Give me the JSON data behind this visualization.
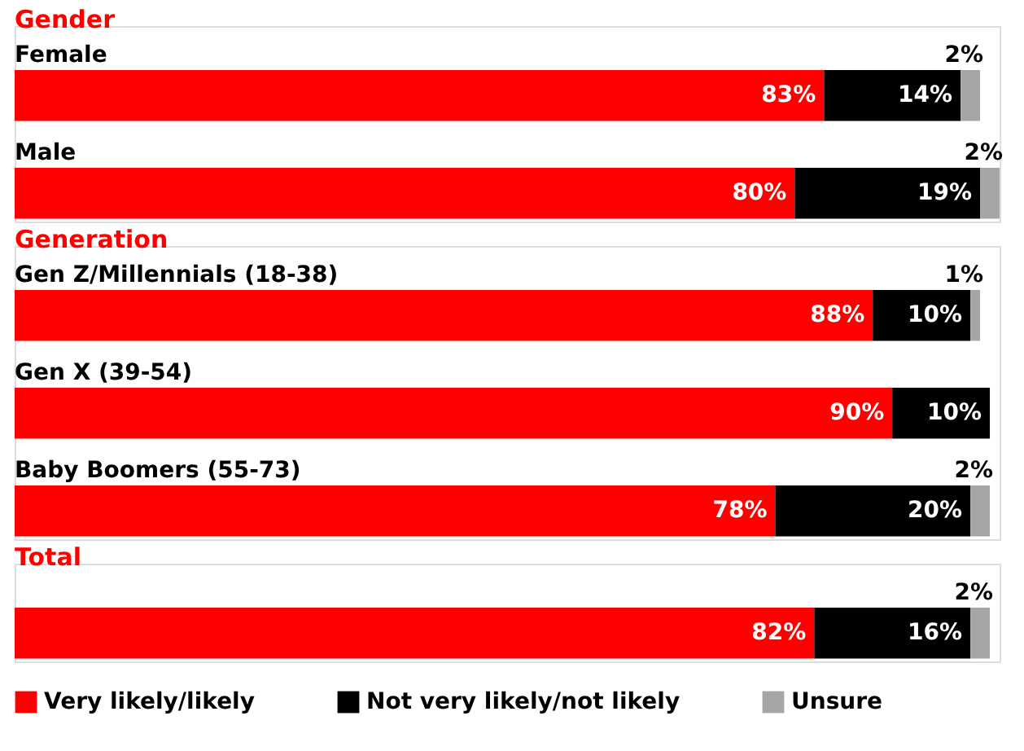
{
  "chart_data": [
    {
      "type": "bar",
      "orientation": "horizontal",
      "stacked": true,
      "title": "Gender",
      "categories": [
        "Female",
        "Male"
      ],
      "series": [
        {
          "color": "#ff0000",
          "values": [
            83,
            80
          ],
          "value_labels": [
            "83%",
            "80%"
          ]
        },
        {
          "color": "#000000",
          "values": [
            14,
            19
          ],
          "value_labels": [
            "14%",
            "19%"
          ]
        },
        {
          "color": "#a6a6a6",
          "values": [
            2,
            2
          ],
          "value_labels": [
            "2%",
            "2%"
          ]
        }
      ]
    },
    {
      "type": "bar",
      "orientation": "horizontal",
      "stacked": true,
      "title": "Generation",
      "categories": [
        "Gen Z/Millennials (18-38)",
        "Gen X (39-54)",
        "Baby Boomers (55-73)"
      ],
      "series": [
        {
          "color": "#ff0000",
          "values": [
            88,
            90,
            78
          ],
          "value_labels": [
            "88%",
            "90%",
            "78%"
          ]
        },
        {
          "color": "#000000",
          "values": [
            10,
            10,
            20
          ],
          "value_labels": [
            "10%",
            "10%",
            "20%"
          ]
        },
        {
          "color": "#a6a6a6",
          "values": [
            1,
            null,
            2
          ],
          "value_labels": [
            "1%",
            null,
            "2%"
          ]
        }
      ]
    },
    {
      "type": "bar",
      "orientation": "horizontal",
      "stacked": true,
      "title": "Total",
      "categories": [
        null
      ],
      "legend": "bottom",
      "series": [
        {
          "name": "Very likely/likely",
          "color": "#ff0000",
          "values": [
            82
          ],
          "value_labels": [
            "82%"
          ]
        },
        {
          "name": "Not very likely/not likely",
          "color": "#000000",
          "values": [
            16
          ],
          "value_labels": [
            "16%"
          ]
        },
        {
          "name": "Unsure",
          "color": "#a6a6a6",
          "values": [
            2
          ],
          "value_labels": [
            "2%"
          ]
        }
      ]
    }
  ]
}
